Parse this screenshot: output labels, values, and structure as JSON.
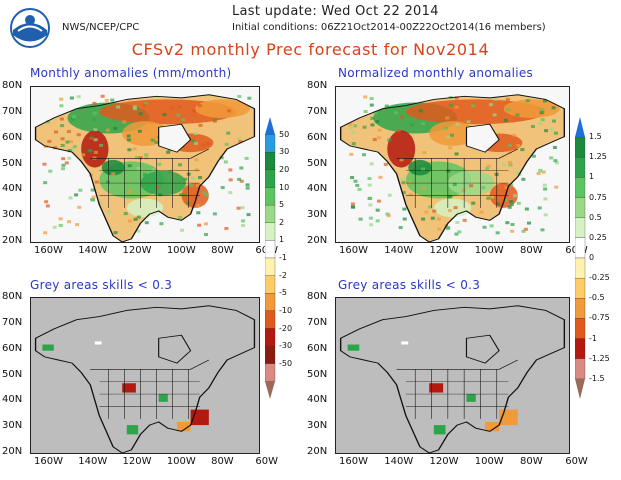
{
  "header": {
    "agency": "NWS/NCEP/CPC",
    "last_update": "Last update: Wed Oct 22 2014",
    "initial_conditions": "Initial conditions: 06Z21Oct2014-00Z22Oct2014(16 members)",
    "title": "CFSv2 monthly Prec forecast for Nov2014"
  },
  "axes": {
    "lat_labels": [
      "80N",
      "70N",
      "60N",
      "50N",
      "40N",
      "30N",
      "20N"
    ],
    "lon_labels": [
      "160W",
      "140W",
      "120W",
      "100W",
      "80W",
      "60W"
    ]
  },
  "panels": [
    {
      "title": "Monthly anomalies (mm/month)",
      "kind": "anomaly",
      "masked": false
    },
    {
      "title": "Normalized monthly anomalies",
      "kind": "normalized",
      "masked": false
    },
    {
      "title": "Grey areas skills < 0.3",
      "kind": "anomaly",
      "masked": true
    },
    {
      "title": "Grey areas skills < 0.3",
      "kind": "normalized",
      "masked": true
    }
  ],
  "colorbars": {
    "anomaly": {
      "labels": [
        "50",
        "30",
        "20",
        "10",
        "5",
        "2",
        "1",
        "-1",
        "-2",
        "-5",
        "-10",
        "-20",
        "-30",
        "-50"
      ],
      "colors": [
        "#1e6fd9",
        "#2a9de0",
        "#1a8a3c",
        "#2ea44a",
        "#5cc461",
        "#9ad987",
        "#d6f2c5",
        "#ffffff",
        "#fff2b0",
        "#ffcc66",
        "#f09a3a",
        "#e05a1d",
        "#b4190f",
        "#8a1c10",
        "#d98a82",
        "#9b6b5a"
      ]
    },
    "normalized": {
      "labels": [
        "1.5",
        "1.25",
        "1",
        "0.75",
        "0.5",
        "0.25",
        "0",
        "-0.25",
        "-0.5",
        "-0.75",
        "-1",
        "-1.25",
        "-1.5"
      ],
      "colors": [
        "#1e6fd9",
        "#1a8a3c",
        "#2ea44a",
        "#5cc461",
        "#9ad987",
        "#d6f2c5",
        "#ffffff",
        "#fff2b0",
        "#ffcc66",
        "#f09a3a",
        "#e05a1d",
        "#b4190f",
        "#d98a82",
        "#9b6b5a"
      ]
    }
  },
  "colors": {
    "title_red": "#d84318",
    "panel_title_blue": "#2a37c9",
    "mask_grey": "#bdbdbd",
    "noaa_blue": "#1f5fae"
  }
}
